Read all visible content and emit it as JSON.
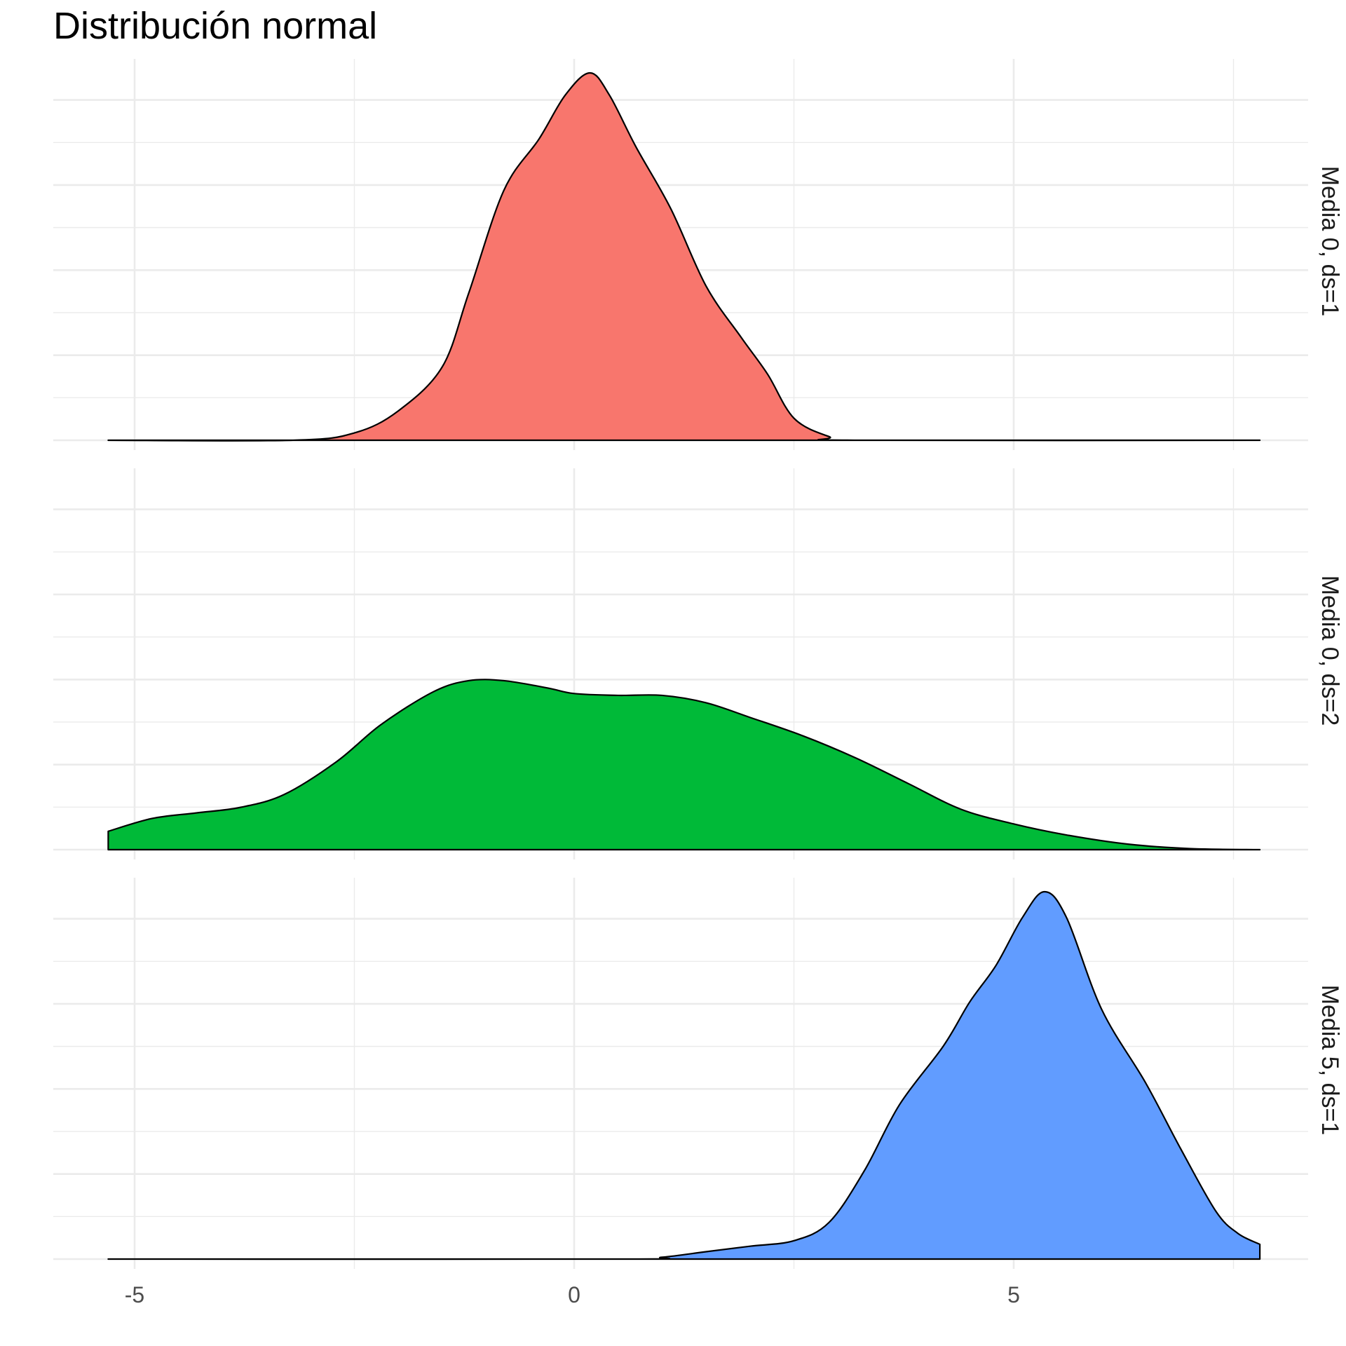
{
  "chart_data": {
    "type": "area",
    "title": "Distribución normal",
    "xlabel": "",
    "ylabel": "",
    "xlim": [
      -5.2,
      7.8
    ],
    "x_ticks": [
      -5,
      0,
      5
    ],
    "grid": true,
    "legend": "none",
    "facets": [
      {
        "label": "Media 0, ds=1",
        "color": "#F8766D",
        "ymax": 1.0,
        "points": [
          [
            -5.3,
            0
          ],
          [
            -3.2,
            0
          ],
          [
            -2.5,
            0.02
          ],
          [
            -2.0,
            0.08
          ],
          [
            -1.5,
            0.2
          ],
          [
            -1.2,
            0.4
          ],
          [
            -0.8,
            0.68
          ],
          [
            -0.4,
            0.82
          ],
          [
            -0.1,
            0.94
          ],
          [
            0.18,
            1.0
          ],
          [
            0.4,
            0.94
          ],
          [
            0.7,
            0.8
          ],
          [
            1.1,
            0.63
          ],
          [
            1.5,
            0.42
          ],
          [
            1.9,
            0.28
          ],
          [
            2.2,
            0.18
          ],
          [
            2.5,
            0.06
          ],
          [
            2.9,
            0.01
          ],
          [
            3.2,
            0
          ],
          [
            7.8,
            0
          ]
        ]
      },
      {
        "label": "Media 0, ds=2",
        "color": "#00BA38",
        "ymax": 1.0,
        "points": [
          [
            -5.3,
            0.05
          ],
          [
            -4.8,
            0.085
          ],
          [
            -4.3,
            0.1
          ],
          [
            -3.8,
            0.115
          ],
          [
            -3.3,
            0.15
          ],
          [
            -2.7,
            0.24
          ],
          [
            -2.2,
            0.34
          ],
          [
            -1.6,
            0.43
          ],
          [
            -1.2,
            0.46
          ],
          [
            -0.8,
            0.46
          ],
          [
            -0.3,
            0.44
          ],
          [
            0.0,
            0.425
          ],
          [
            0.5,
            0.42
          ],
          [
            1.0,
            0.42
          ],
          [
            1.5,
            0.4
          ],
          [
            2.0,
            0.36
          ],
          [
            2.6,
            0.31
          ],
          [
            3.2,
            0.25
          ],
          [
            3.8,
            0.18
          ],
          [
            4.4,
            0.11
          ],
          [
            5.0,
            0.07
          ],
          [
            5.6,
            0.04
          ],
          [
            6.3,
            0.015
          ],
          [
            7.0,
            0.003
          ],
          [
            7.8,
            0
          ]
        ]
      },
      {
        "label": "Media 5, ds=1",
        "color": "#619CFF",
        "ymax": 1.0,
        "points": [
          [
            -5.3,
            0
          ],
          [
            0.5,
            0
          ],
          [
            1.0,
            0.005
          ],
          [
            1.5,
            0.02
          ],
          [
            2.0,
            0.035
          ],
          [
            2.5,
            0.05
          ],
          [
            2.9,
            0.1
          ],
          [
            3.3,
            0.24
          ],
          [
            3.7,
            0.42
          ],
          [
            4.2,
            0.58
          ],
          [
            4.5,
            0.7
          ],
          [
            4.8,
            0.8
          ],
          [
            5.1,
            0.93
          ],
          [
            5.35,
            1.0
          ],
          [
            5.6,
            0.93
          ],
          [
            6.0,
            0.68
          ],
          [
            6.5,
            0.48
          ],
          [
            6.9,
            0.3
          ],
          [
            7.3,
            0.13
          ],
          [
            7.55,
            0.07
          ],
          [
            7.8,
            0.04
          ]
        ]
      }
    ]
  }
}
